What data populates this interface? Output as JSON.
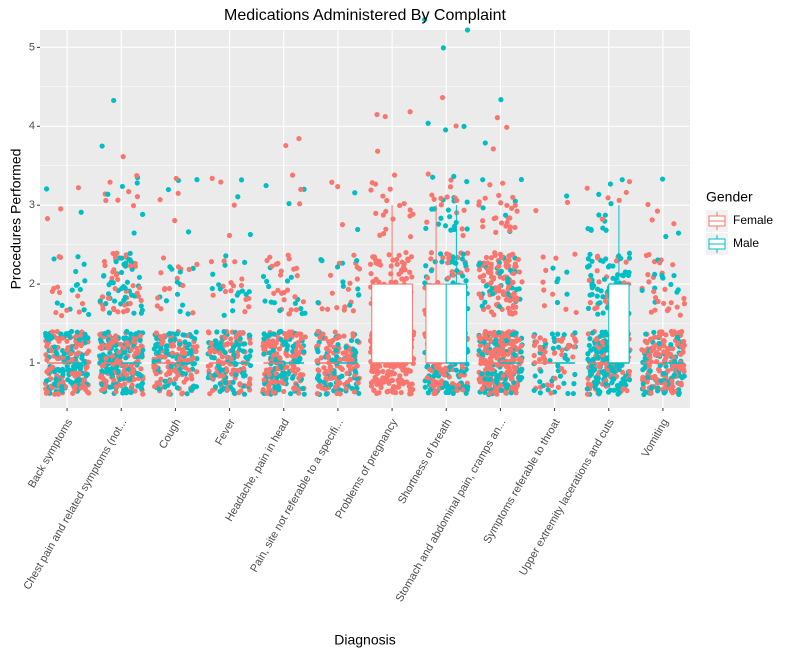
{
  "chart_data": {
    "type": "jitter-box",
    "title": "Medications Administered By Complaint",
    "x_label": "Diagnosis",
    "y_label": "Procedures Performed",
    "legend_title": "Gender",
    "categories": [
      "Back symptoms",
      "Chest pain and related symptoms (not...",
      "Cough",
      "Fever",
      "Headache, pain in head",
      "Pain, site not referable to a specifi...",
      "Problems of pregnancy",
      "Shortness of breath",
      "Stomach and abdominal pain, cramps an...",
      "Symptoms referable to throat",
      "Upper extremity lacerations and cuts",
      "Vomiting"
    ],
    "levels": [
      1,
      2,
      3,
      4,
      5
    ],
    "ylim": [
      0.43,
      5.22
    ],
    "yticks": [
      1,
      2,
      3,
      4,
      5
    ],
    "grid": true,
    "series": [
      {
        "name": "Female",
        "color": "#F8766D",
        "counts": [
          [
            110,
            12,
            3,
            0,
            0
          ],
          [
            130,
            40,
            8,
            1,
            0
          ],
          [
            100,
            15,
            4,
            0,
            0
          ],
          [
            90,
            15,
            4,
            0,
            0
          ],
          [
            130,
            25,
            3,
            2,
            0
          ],
          [
            110,
            18,
            3,
            0,
            0
          ],
          [
            220,
            70,
            20,
            4,
            0
          ],
          [
            120,
            45,
            15,
            2,
            0
          ],
          [
            200,
            100,
            25,
            3,
            0
          ],
          [
            40,
            10,
            2,
            0,
            0
          ],
          [
            80,
            20,
            6,
            0,
            0
          ],
          [
            140,
            25,
            4,
            0,
            0
          ]
        ],
        "boxes": [
          [
            1,
            1,
            1,
            1,
            1
          ],
          [
            1,
            1,
            1,
            1,
            1
          ],
          [
            1,
            1,
            1,
            1,
            1
          ],
          [
            1,
            1,
            1,
            1,
            1
          ],
          [
            1,
            1,
            1,
            1,
            1
          ],
          [
            1,
            1,
            1,
            1,
            1
          ],
          [
            1,
            1,
            1,
            2,
            3
          ],
          [
            1,
            1,
            1,
            2,
            3
          ],
          [
            1,
            1,
            1,
            1,
            1
          ],
          [
            1,
            1,
            1,
            1,
            1
          ],
          [
            1,
            1,
            1,
            1,
            1
          ],
          [
            1,
            1,
            1,
            1,
            1
          ]
        ]
      },
      {
        "name": "Male",
        "color": "#00BFC4",
        "counts": [
          [
            110,
            14,
            2,
            0,
            0
          ],
          [
            140,
            45,
            6,
            2,
            0
          ],
          [
            90,
            12,
            4,
            0,
            0
          ],
          [
            90,
            15,
            3,
            0,
            0
          ],
          [
            90,
            15,
            3,
            0,
            0
          ],
          [
            70,
            12,
            2,
            0,
            0
          ],
          [
            0,
            0,
            0,
            0,
            0
          ],
          [
            120,
            50,
            20,
            3,
            3
          ],
          [
            100,
            30,
            6,
            2,
            0
          ],
          [
            40,
            6,
            1,
            0,
            0
          ],
          [
            140,
            70,
            12,
            0,
            0
          ],
          [
            80,
            12,
            3,
            0,
            0
          ]
        ],
        "boxes": [
          [
            1,
            1,
            1,
            1,
            1
          ],
          [
            1,
            1,
            1,
            1,
            1
          ],
          [
            1,
            1,
            1,
            1,
            1
          ],
          [
            1,
            1,
            1,
            1,
            1
          ],
          [
            1,
            1,
            1,
            1,
            1
          ],
          [
            1,
            1,
            1,
            1,
            1
          ],
          null,
          [
            1,
            1,
            1,
            2,
            3
          ],
          [
            1,
            1,
            1,
            1,
            1
          ],
          [
            1,
            1,
            1,
            1,
            1
          ],
          [
            1,
            1,
            1,
            2,
            3
          ],
          [
            1,
            1,
            1,
            1,
            1
          ]
        ]
      }
    ]
  }
}
